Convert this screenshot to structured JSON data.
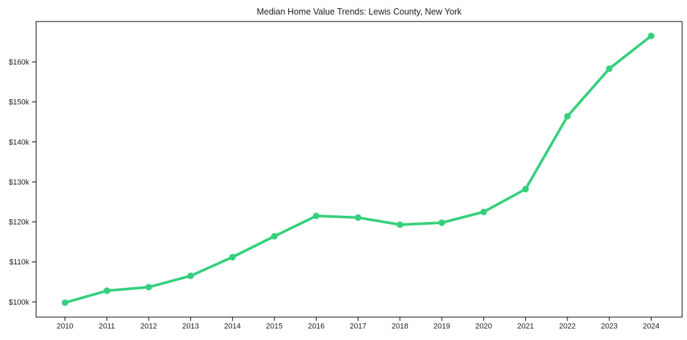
{
  "chart_data": {
    "type": "line",
    "title": "Median Home Value Trends: Lewis County, New York",
    "xlabel": "",
    "ylabel": "",
    "x": [
      2010,
      2011,
      2012,
      2013,
      2014,
      2015,
      2016,
      2017,
      2018,
      2019,
      2020,
      2021,
      2022,
      2023,
      2024
    ],
    "x_tick_labels": [
      "2010",
      "2011",
      "2012",
      "2013",
      "2014",
      "2015",
      "2016",
      "2017",
      "2018",
      "2019",
      "2020",
      "2021",
      "2022",
      "2023",
      "2024"
    ],
    "values": [
      99800,
      102800,
      103700,
      106500,
      111200,
      116400,
      121500,
      121100,
      119300,
      119800,
      122500,
      128200,
      146400,
      158300,
      166500
    ],
    "y_tick_values": [
      100000,
      110000,
      120000,
      130000,
      140000,
      150000,
      160000
    ],
    "y_tick_labels": [
      "$100k",
      "$110k",
      "$120k",
      "$130k",
      "$140k",
      "$150k",
      "$160k"
    ],
    "ylim": [
      96200,
      170100
    ],
    "xlim": [
      2009.31,
      2024.74
    ],
    "grid": false,
    "legend": "none",
    "line_color": "#35d07c",
    "marker_color": "#35d07c",
    "marker_shape": "circle",
    "background_color": "#ffffff",
    "text_color": "#1c1c1c",
    "spine_color": "#000000"
  }
}
